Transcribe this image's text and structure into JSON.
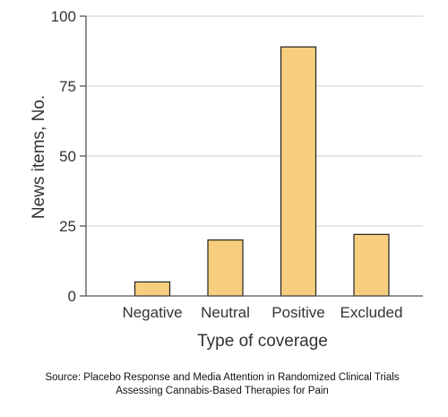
{
  "chart_data": {
    "type": "bar",
    "categories": [
      "Negative",
      "Neutral",
      "Positive",
      "Excluded"
    ],
    "values": [
      5,
      20,
      89,
      22
    ],
    "xlabel": "Type of coverage",
    "ylabel": "News items, No.",
    "ylim": [
      0,
      100
    ],
    "yticks": [
      0,
      25,
      50,
      75,
      100
    ],
    "grid": true,
    "colors": {
      "bar_fill": "#F6CE7E",
      "bar_stroke": "#222222",
      "grid": "#CFCFCF",
      "axis": "#555555"
    }
  },
  "source": {
    "line1": "Source: Placebo Response and Media Attention in Randomized Clinical Trials",
    "line2": "Assessing Cannabis-Based Therapies for Pain"
  }
}
